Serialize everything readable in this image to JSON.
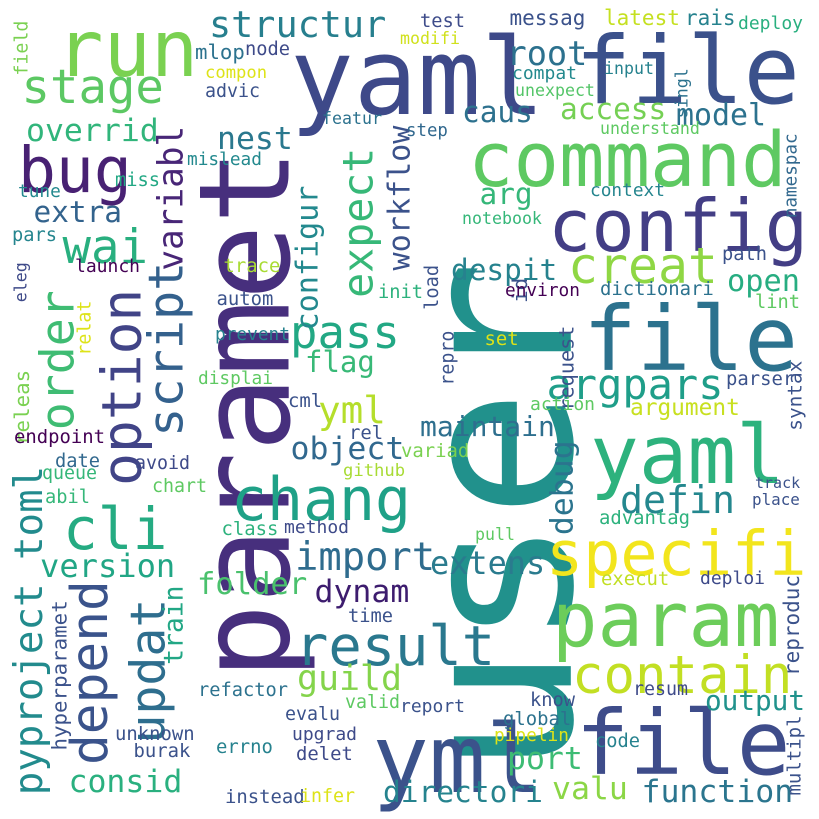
{
  "words": [
    {
      "text": "user",
      "color": "#21918c"
    },
    {
      "text": "paramet",
      "color": "#472f7d"
    },
    {
      "text": "file",
      "color": "#3b518b"
    },
    {
      "text": "yaml",
      "color": "#3e4989"
    },
    {
      "text": "command",
      "color": "#5ec962"
    },
    {
      "text": "config",
      "color": "#433e85"
    },
    {
      "text": "file",
      "color": "#2c728e"
    },
    {
      "text": "yaml",
      "color": "#2db27d"
    },
    {
      "text": "specifi",
      "color": "#f2e51d"
    },
    {
      "text": "param",
      "color": "#6ccd5a"
    },
    {
      "text": "contain",
      "color": "#c2df23"
    },
    {
      "text": "yml",
      "color": "#3b528b"
    },
    {
      "text": "file",
      "color": "#3e4c8a"
    },
    {
      "text": "run",
      "color": "#7ad151"
    },
    {
      "text": "result",
      "color": "#2a788e"
    },
    {
      "text": "chang",
      "color": "#1fa187"
    },
    {
      "text": "cli",
      "color": "#25ab82"
    },
    {
      "text": "option",
      "color": "#414487"
    },
    {
      "text": "bug",
      "color": "#482173"
    },
    {
      "text": "order",
      "color": "#3fbc73"
    },
    {
      "text": "stage",
      "color": "#5cc863"
    },
    {
      "text": "structur",
      "color": "#277f8e"
    },
    {
      "text": "wai",
      "color": "#29af7f"
    },
    {
      "text": "updat",
      "color": "#2e6e8e"
    },
    {
      "text": "depend",
      "color": "#3a538b"
    },
    {
      "text": "script",
      "color": "#34618d"
    },
    {
      "text": "expect",
      "color": "#37b878"
    },
    {
      "text": "pass",
      "color": "#22a884"
    },
    {
      "text": "creat",
      "color": "#8fd744"
    },
    {
      "text": "root",
      "color": "#2c718e"
    },
    {
      "text": "argpars",
      "color": "#1f9e89"
    },
    {
      "text": "defin",
      "color": "#24878e"
    },
    {
      "text": "import",
      "color": "#2f6c8e"
    },
    {
      "text": "guild",
      "color": "#84d44b"
    },
    {
      "text": "yml",
      "color": "#b5de2b"
    },
    {
      "text": "maintain",
      "color": "#2e6f8e"
    },
    {
      "text": "object",
      "color": "#31688e"
    },
    {
      "text": "flag",
      "color": "#38b977"
    },
    {
      "text": "version",
      "color": "#21a685"
    },
    {
      "text": "pyproject toml",
      "color": "#228b8d"
    },
    {
      "text": "dynam",
      "color": "#3d1c6e"
    },
    {
      "text": "extens",
      "color": "#2a7b8e"
    },
    {
      "text": "folder",
      "color": "#4ac16d"
    },
    {
      "text": "directori",
      "color": "#25838e"
    },
    {
      "text": "valu",
      "color": "#8bd646"
    },
    {
      "text": "function",
      "color": "#2b758e"
    },
    {
      "text": "port",
      "color": "#3dbc74"
    },
    {
      "text": "output",
      "color": "#20928c"
    },
    {
      "text": "consid",
      "color": "#2ab07f"
    },
    {
      "text": "open",
      "color": "#27ad81"
    },
    {
      "text": "access",
      "color": "#75d054"
    },
    {
      "text": "model",
      "color": "#2c728e"
    },
    {
      "text": "caus",
      "color": "#2d718e"
    },
    {
      "text": "nest",
      "color": "#2a788e"
    },
    {
      "text": "overrid",
      "color": "#31b57b"
    },
    {
      "text": "extra",
      "color": "#33638d"
    },
    {
      "text": "arg",
      "color": "#35b779"
    },
    {
      "text": "despit",
      "color": "#26828e"
    },
    {
      "text": "workflow",
      "color": "#3b528b"
    },
    {
      "text": "configur",
      "color": "#23898e"
    },
    {
      "text": "variabl",
      "color": "#482677"
    },
    {
      "text": "debug",
      "color": "#2b748e"
    },
    {
      "text": "argument",
      "color": "#c8e020"
    },
    {
      "text": "train",
      "color": "#22a785"
    },
    {
      "text": "depend",
      "color": "#3a538b"
    },
    {
      "text": "messag",
      "color": "#3b528b"
    },
    {
      "text": "test",
      "color": "#3e4c8a"
    },
    {
      "text": "latest",
      "color": "#c5e021"
    },
    {
      "text": "rais",
      "color": "#26828e"
    },
    {
      "text": "deploy",
      "color": "#29af7f"
    },
    {
      "text": "mlop",
      "color": "#2c728e"
    },
    {
      "text": "node",
      "color": "#3e4a89"
    },
    {
      "text": "modifi",
      "color": "#d0e11c"
    },
    {
      "text": "compon",
      "color": "#dde318"
    },
    {
      "text": "advic",
      "color": "#3b528b"
    },
    {
      "text": "compat",
      "color": "#23898e"
    },
    {
      "text": "unexpect",
      "color": "#54c568"
    },
    {
      "text": "input",
      "color": "#26828e"
    },
    {
      "text": "singl",
      "color": "#2c728e"
    },
    {
      "text": "field",
      "color": "#7ad151"
    },
    {
      "text": "featur",
      "color": "#2c728e"
    },
    {
      "text": "step",
      "color": "#31688e"
    },
    {
      "text": "understand",
      "color": "#5ec962"
    },
    {
      "text": "mislead",
      "color": "#23898e"
    },
    {
      "text": "tune",
      "color": "#23898e"
    },
    {
      "text": "miss",
      "color": "#22a884"
    },
    {
      "text": "context",
      "color": "#25858e"
    },
    {
      "text": "notebook",
      "color": "#35b779"
    },
    {
      "text": "namespac",
      "color": "#31688e"
    },
    {
      "text": "pars",
      "color": "#25858e"
    },
    {
      "text": "launch",
      "color": "#440154"
    },
    {
      "text": "trace",
      "color": "#a8db34"
    },
    {
      "text": "path",
      "color": "#3b528b"
    },
    {
      "text": "eleg",
      "color": "#3e4a89"
    },
    {
      "text": "autom",
      "color": "#3b528b"
    },
    {
      "text": "load",
      "color": "#3b528b"
    },
    {
      "text": "init",
      "color": "#2db27d"
    },
    {
      "text": "id",
      "color": "#3b528b"
    },
    {
      "text": "environ",
      "color": "#440154"
    },
    {
      "text": "dictionari",
      "color": "#2c728e"
    },
    {
      "text": "lint",
      "color": "#5ec962"
    },
    {
      "text": "relat",
      "color": "#dde318"
    },
    {
      "text": "prevent",
      "color": "#26828e"
    },
    {
      "text": "repro",
      "color": "#3b528b"
    },
    {
      "text": "request",
      "color": "#3b528b"
    },
    {
      "text": "set",
      "color": "#dde318"
    },
    {
      "text": "displai",
      "color": "#5ec962"
    },
    {
      "text": "parser",
      "color": "#3b528b"
    },
    {
      "text": "syntax",
      "color": "#3b528b"
    },
    {
      "text": "releas",
      "color": "#7ad151"
    },
    {
      "text": "cml",
      "color": "#3b528b"
    },
    {
      "text": "action",
      "color": "#5ec962"
    },
    {
      "text": "rel",
      "color": "#3b528b"
    },
    {
      "text": "endpoint",
      "color": "#440154"
    },
    {
      "text": "variad",
      "color": "#7ad151"
    },
    {
      "text": "date",
      "color": "#31688e"
    },
    {
      "text": "avoid",
      "color": "#3e4a89"
    },
    {
      "text": "queue",
      "color": "#35b779"
    },
    {
      "text": "github",
      "color": "#a8db34"
    },
    {
      "text": "track",
      "color": "#3b528b"
    },
    {
      "text": "abil",
      "color": "#35b779"
    },
    {
      "text": "chart",
      "color": "#5ec962"
    },
    {
      "text": "place",
      "color": "#3b528b"
    },
    {
      "text": "class",
      "color": "#2db27d"
    },
    {
      "text": "method",
      "color": "#3e4a89"
    },
    {
      "text": "advantag",
      "color": "#2db27d"
    },
    {
      "text": "pull",
      "color": "#5ec962"
    },
    {
      "text": "execut",
      "color": "#c2df23"
    },
    {
      "text": "deploi",
      "color": "#3e4a89"
    },
    {
      "text": "time",
      "color": "#3b528b"
    },
    {
      "text": "reproduc",
      "color": "#3b528b"
    },
    {
      "text": "hyperparamet",
      "color": "#3b528b"
    },
    {
      "text": "refactor",
      "color": "#2c728e"
    },
    {
      "text": "resum",
      "color": "#3e4a89"
    },
    {
      "text": "evalu",
      "color": "#3b528b"
    },
    {
      "text": "valid",
      "color": "#5ec962"
    },
    {
      "text": "report",
      "color": "#3b528b"
    },
    {
      "text": "know",
      "color": "#3b528b"
    },
    {
      "text": "global",
      "color": "#2c728e"
    },
    {
      "text": "unknown",
      "color": "#3b528b"
    },
    {
      "text": "upgrad",
      "color": "#3e4a89"
    },
    {
      "text": "pipelin",
      "color": "#dde318"
    },
    {
      "text": "code",
      "color": "#26828e"
    },
    {
      "text": "burak",
      "color": "#3b528b"
    },
    {
      "text": "errno",
      "color": "#26828e"
    },
    {
      "text": "delet",
      "color": "#3e4a89"
    },
    {
      "text": "multipl",
      "color": "#3b528b"
    },
    {
      "text": "instead",
      "color": "#3b528b"
    },
    {
      "text": "infer",
      "color": "#dde318"
    }
  ]
}
